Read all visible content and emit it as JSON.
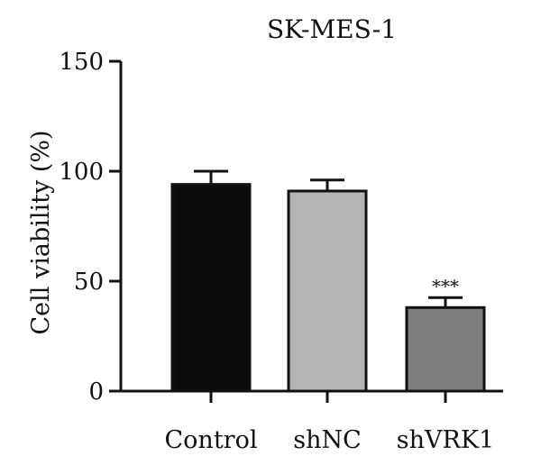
{
  "chart_data": {
    "type": "bar",
    "title": "SK-MES-1",
    "xlabel": "",
    "ylabel": "Cell viability (%)",
    "ylim": [
      0,
      150
    ],
    "yticks": [
      0,
      50,
      100,
      150
    ],
    "ytick_labels": [
      "0",
      "50",
      "100",
      "150"
    ],
    "categories": [
      "Control",
      "shNC",
      "shVRK1"
    ],
    "values": [
      94,
      91,
      38
    ],
    "errors": [
      6,
      5,
      4.5
    ],
    "bar_colors": [
      "#0b0b0b",
      "#b4b4b4",
      "#7e7e7e"
    ],
    "annotations": [
      {
        "category": "shVRK1",
        "text": "***"
      }
    ],
    "grid": false,
    "legend": false
  }
}
